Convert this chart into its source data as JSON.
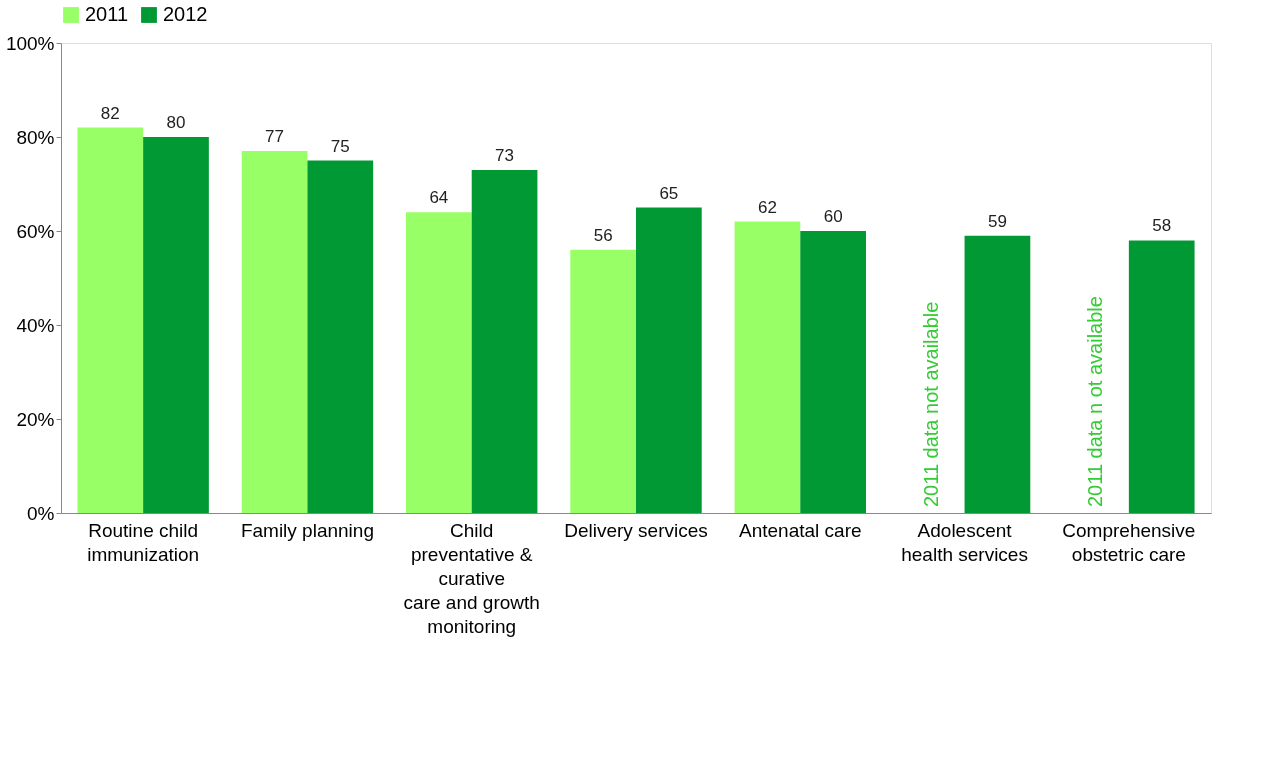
{
  "chart_data": {
    "type": "bar",
    "categories": [
      "Routine child\nimmunization",
      "Family planning",
      "Child\npreventative &\ncurative\ncare and growth\nmonitoring",
      "Delivery services",
      "Antenatal care",
      "Adolescent\nhealth services",
      "Comprehensive\nobstetric care"
    ],
    "series": [
      {
        "name": "2011",
        "color": "#99ff66",
        "values": [
          82,
          77,
          64,
          56,
          62,
          null,
          null
        ]
      },
      {
        "name": "2012",
        "color": "#009933",
        "values": [
          80,
          75,
          73,
          65,
          60,
          59,
          58
        ]
      }
    ],
    "ylim": [
      0,
      100
    ],
    "yticks": [
      {
        "value": 0,
        "label": "0%"
      },
      {
        "value": 20,
        "label": "20%"
      },
      {
        "value": 40,
        "label": "40%"
      },
      {
        "value": 60,
        "label": "60%"
      },
      {
        "value": 80,
        "label": "80%"
      },
      {
        "value": 100,
        "label": "100%"
      }
    ],
    "data_labels": true,
    "legend": "top",
    "grid": false,
    "annotations": [
      {
        "text": "2011 data not available",
        "x": "Adolescent\nhealth services",
        "y": 0
      },
      {
        "text": "2011 data n ot available",
        "x": "Comprehensive\nobstetric care",
        "y": 0
      }
    ]
  }
}
